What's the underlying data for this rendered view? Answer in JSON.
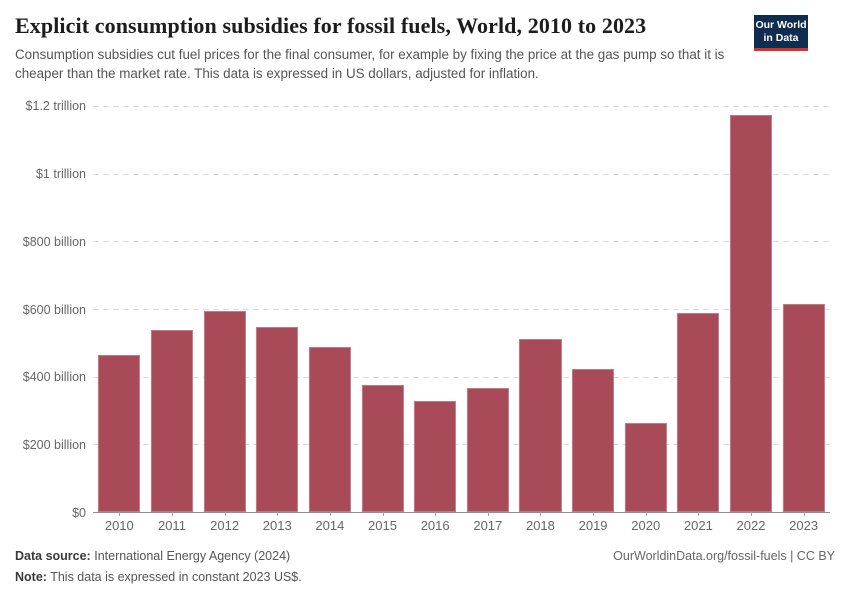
{
  "header": {
    "title": "Explicit consumption subsidies for fossil fuels, World, 2010 to 2023",
    "subtitle": "Consumption subsidies cut fuel prices for the final consumer, for example by fixing the price at the gas pump so that it is cheaper than the market rate. This data is expressed in US dollars, adjusted for inflation.",
    "logo": {
      "line1": "Our World",
      "line2": "in Data",
      "bg_color": "#102d4f",
      "accent_color": "#d5302e"
    }
  },
  "chart_data": {
    "type": "bar",
    "title": "Explicit consumption subsidies for fossil fuels, World, 2010 to 2023",
    "categories": [
      "2010",
      "2011",
      "2012",
      "2013",
      "2014",
      "2015",
      "2016",
      "2017",
      "2018",
      "2019",
      "2020",
      "2021",
      "2022",
      "2023"
    ],
    "values": [
      465,
      537,
      595,
      547,
      489,
      375,
      328,
      366,
      511,
      423,
      264,
      588,
      1172,
      616
    ],
    "unit": "US$ billion, constant 2023 prices",
    "xlabel": "",
    "ylabel": "",
    "ylim": [
      0,
      1200
    ],
    "yticks": [
      {
        "value": 0,
        "label": "$0"
      },
      {
        "value": 200,
        "label": "$200 billion"
      },
      {
        "value": 400,
        "label": "$400 billion"
      },
      {
        "value": 600,
        "label": "$600 billion"
      },
      {
        "value": 800,
        "label": "$800 billion"
      },
      {
        "value": 1000,
        "label": "$1 trillion"
      },
      {
        "value": 1200,
        "label": "$1.2 trillion"
      }
    ],
    "grid": "horizontal-dashed",
    "legend_position": "none",
    "colors": {
      "bar": "#a84a58",
      "gridline": "#dcdcdc",
      "axis_line": "#8f8f8f",
      "tick_text": "#666666"
    }
  },
  "footer": {
    "source_label": "Data source:",
    "source_value": "International Energy Agency (2024)",
    "note_label": "Note:",
    "note_value": "This data is expressed in constant 2023 US$.",
    "link": "OurWorldinData.org/fossil-fuels | CC BY"
  }
}
